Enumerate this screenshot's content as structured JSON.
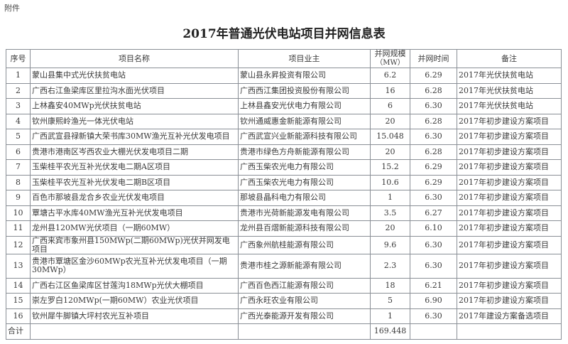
{
  "attachment_label": "附件",
  "title": "2017年普通光伏电站项目并网信息表",
  "headers": {
    "no": "序号",
    "name": "项目名称",
    "owner": "项目业主",
    "scale": "并网规模",
    "scale_unit": "（MW）",
    "time": "并网时间",
    "note": "备注"
  },
  "rows": [
    {
      "no": "1",
      "name": "蒙山县集中式光伏扶贫电站",
      "owner": "蒙山县永昇投资有限公司",
      "scale": "6.2",
      "time": "6.29",
      "note": "2017年光伏扶贫电站"
    },
    {
      "no": "2",
      "name": "广西右江鱼梁库区里拉沟水面光伏项目",
      "owner": "广西西江集团投资股份有限公司",
      "scale": "16",
      "time": "6.28",
      "note": "2017年光伏扶贫电站"
    },
    {
      "no": "3",
      "name": "上林鑫安40MWp光伏扶贫电站",
      "owner": "上林县鑫安光伏电力有限公司",
      "scale": "6",
      "time": "6.30",
      "note": "2017年光伏扶贫电站"
    },
    {
      "no": "4",
      "name": "钦州康熙岭渔光一体光伏电站",
      "owner": "钦州通威惠金新能源有限公司",
      "scale": "20",
      "time": "6.28",
      "note": "2017年初步建设方案项目"
    },
    {
      "no": "5",
      "name": "广西武宣县禄新镇大荣书库30MW渔光互补光伏发电项目",
      "owner": "广西武宣兴业新能源科技有限公司",
      "scale": "15.048",
      "time": "6.30",
      "note": "2017年初步建设方案项目"
    },
    {
      "no": "6",
      "name": "贵港市港南区岑西农业大棚光伏发电项目二期",
      "owner": "贵港市绿色方舟新能源有限公司",
      "scale": "20",
      "time": "6.28",
      "note": "2017年初步建设方案项目"
    },
    {
      "no": "7",
      "name": "玉柴桂平农光互补光伏发电二期A区项目",
      "owner": "广西玉柴农光电力有限公司",
      "scale": "15.2",
      "time": "6.29",
      "note": "2017年初步建设方案项目"
    },
    {
      "no": "8",
      "name": "玉柴桂平农光互补光伏发电二期B区项目",
      "owner": "广西玉柴农光电力有限公司",
      "scale": "10.6",
      "time": "6.29",
      "note": "2017年初步建设方案项目"
    },
    {
      "no": "9",
      "name": "百色市那坡县龙合乡农业光伏发电项目",
      "owner": "那坡县晶科电力有限公司",
      "scale": "1",
      "time": "6.30",
      "note": "2017年初步建设方案项目"
    },
    {
      "no": "10",
      "name": "覃塘古平水库40MW渔光互补光伏发电项目",
      "owner": "贵港市光荷新能源发电有限公司",
      "scale": "3.5",
      "time": "6.27",
      "note": "2017年初步建设方案项目"
    },
    {
      "no": "11",
      "name": "龙州县120MW光伏项目（一期60MW）",
      "owner": "龙州县百熠新能源科技有限公司",
      "scale": "20",
      "time": "6.10",
      "note": "2017年初步建设方案项目"
    },
    {
      "no": "12",
      "name": "广西来宾市象州县150MWp(二期60MWp)光伏并网发电项目",
      "owner": "广西象州航桂能源有限公司",
      "scale": "9.6",
      "time": "6.30",
      "note": "2017年初步建设方案项目"
    },
    {
      "no": "13",
      "name": "贵港市覃塘区金沙60MWp农光互补光伏发电项目（一期30MWp）",
      "owner": "贵港市桂之源新能源有限公司",
      "scale": "2.3",
      "time": "6.30",
      "note": "2017年初步建设方案项目"
    },
    {
      "no": "14",
      "name": "广西右江区鱼梁库区甘莲沟18MWp光伏大棚项目",
      "owner": "广西百色西江能源有限公司",
      "scale": "18",
      "time": "6.21",
      "note": "2017年初步建设方案项目"
    },
    {
      "no": "15",
      "name": "崇左罗白120MWp(一期60MW）农业光伏项目",
      "owner": "广西永旺农业有限公司",
      "scale": "5",
      "time": "6.90",
      "note": "2017年初步建设方案项目"
    },
    {
      "no": "16",
      "name": "钦州犀牛脚镇大坪村农光互补项目",
      "owner": "广西光泰能源开发有限公司",
      "scale": "1",
      "time": "6.30",
      "note": "2017年建设方案备选项目"
    }
  ],
  "total": {
    "label": "合计",
    "scale": "169.448"
  }
}
